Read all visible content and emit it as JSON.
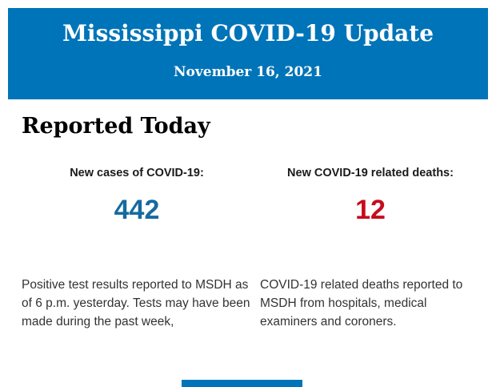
{
  "header": {
    "title": "Mississippi COVID-19 Update",
    "date": "November 16, 2021",
    "background_color": "#0074b8",
    "text_color": "#ffffff"
  },
  "section": {
    "title": "Reported Today"
  },
  "stats": [
    {
      "label": "New cases of COVID-19:",
      "value": "442",
      "value_color": "#166a9f",
      "description": "Positive test results reported to MSDH as of 6 p.m. yesterday. Tests may have been made during the past week,"
    },
    {
      "label": "New COVID-19 related deaths:",
      "value": "12",
      "value_color": "#c60c1c",
      "description": "COVID-19 related deaths reported to MSDH from hospitals, medical examiners and coroners."
    }
  ],
  "footer": {
    "accent_bar_color": "#0074b8"
  }
}
